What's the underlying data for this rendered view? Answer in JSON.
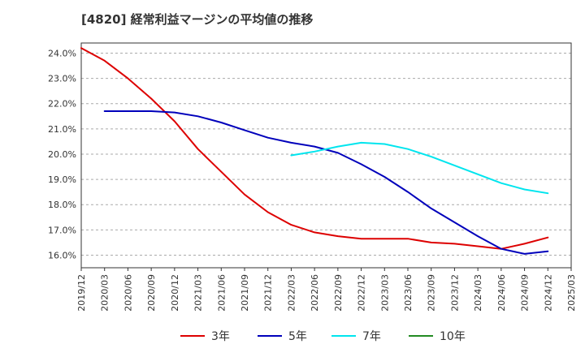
{
  "chart_data": {
    "type": "line",
    "title": "[4820]  経常利益マージンの平均値の推移",
    "xlabel": "",
    "ylabel": "",
    "x_ticks": [
      "2019/12",
      "2020/03",
      "2020/06",
      "2020/09",
      "2020/12",
      "2021/03",
      "2021/06",
      "2021/09",
      "2021/12",
      "2022/03",
      "2022/06",
      "2022/09",
      "2022/12",
      "2023/03",
      "2023/06",
      "2023/09",
      "2023/12",
      "2024/03",
      "2024/06",
      "2024/09",
      "2024/12",
      "2025/03"
    ],
    "y_ticks": [
      "16.0%",
      "17.0%",
      "18.0%",
      "19.0%",
      "20.0%",
      "21.0%",
      "22.0%",
      "23.0%",
      "24.0%"
    ],
    "ylim": [
      15.5,
      24.4
    ],
    "grid": "horizontal dashed",
    "legend_position": "bottom",
    "series": [
      {
        "name": "3年",
        "color": "#dd0000",
        "points": [
          {
            "x": "2019/12",
            "y": 24.2
          },
          {
            "x": "2020/03",
            "y": 23.7
          },
          {
            "x": "2020/06",
            "y": 23.0
          },
          {
            "x": "2020/09",
            "y": 22.2
          },
          {
            "x": "2020/12",
            "y": 21.3
          },
          {
            "x": "2021/03",
            "y": 20.2
          },
          {
            "x": "2021/06",
            "y": 19.3
          },
          {
            "x": "2021/09",
            "y": 18.4
          },
          {
            "x": "2021/12",
            "y": 17.7
          },
          {
            "x": "2022/03",
            "y": 17.2
          },
          {
            "x": "2022/06",
            "y": 16.9
          },
          {
            "x": "2022/09",
            "y": 16.75
          },
          {
            "x": "2022/12",
            "y": 16.65
          },
          {
            "x": "2023/03",
            "y": 16.65
          },
          {
            "x": "2023/06",
            "y": 16.65
          },
          {
            "x": "2023/09",
            "y": 16.5
          },
          {
            "x": "2023/12",
            "y": 16.45
          },
          {
            "x": "2024/03",
            "y": 16.35
          },
          {
            "x": "2024/06",
            "y": 16.25
          },
          {
            "x": "2024/09",
            "y": 16.45
          },
          {
            "x": "2024/12",
            "y": 16.7
          }
        ]
      },
      {
        "name": "5年",
        "color": "#0000bb",
        "points": [
          {
            "x": "2020/03",
            "y": 21.7
          },
          {
            "x": "2020/06",
            "y": 21.7
          },
          {
            "x": "2020/09",
            "y": 21.7
          },
          {
            "x": "2020/12",
            "y": 21.65
          },
          {
            "x": "2021/03",
            "y": 21.5
          },
          {
            "x": "2021/06",
            "y": 21.25
          },
          {
            "x": "2021/09",
            "y": 20.95
          },
          {
            "x": "2021/12",
            "y": 20.65
          },
          {
            "x": "2022/03",
            "y": 20.45
          },
          {
            "x": "2022/06",
            "y": 20.3
          },
          {
            "x": "2022/09",
            "y": 20.05
          },
          {
            "x": "2022/12",
            "y": 19.6
          },
          {
            "x": "2023/03",
            "y": 19.1
          },
          {
            "x": "2023/06",
            "y": 18.5
          },
          {
            "x": "2023/09",
            "y": 17.85
          },
          {
            "x": "2023/12",
            "y": 17.3
          },
          {
            "x": "2024/03",
            "y": 16.75
          },
          {
            "x": "2024/06",
            "y": 16.25
          },
          {
            "x": "2024/09",
            "y": 16.05
          },
          {
            "x": "2024/12",
            "y": 16.15
          }
        ]
      },
      {
        "name": "7年",
        "color": "#00e5ee",
        "points": [
          {
            "x": "2022/03",
            "y": 19.95
          },
          {
            "x": "2022/06",
            "y": 20.1
          },
          {
            "x": "2022/09",
            "y": 20.3
          },
          {
            "x": "2022/12",
            "y": 20.45
          },
          {
            "x": "2023/03",
            "y": 20.4
          },
          {
            "x": "2023/06",
            "y": 20.2
          },
          {
            "x": "2023/09",
            "y": 19.9
          },
          {
            "x": "2023/12",
            "y": 19.55
          },
          {
            "x": "2024/03",
            "y": 19.2
          },
          {
            "x": "2024/06",
            "y": 18.85
          },
          {
            "x": "2024/09",
            "y": 18.6
          },
          {
            "x": "2024/12",
            "y": 18.45
          }
        ]
      },
      {
        "name": "10年",
        "color": "#228b22",
        "points": []
      }
    ]
  }
}
